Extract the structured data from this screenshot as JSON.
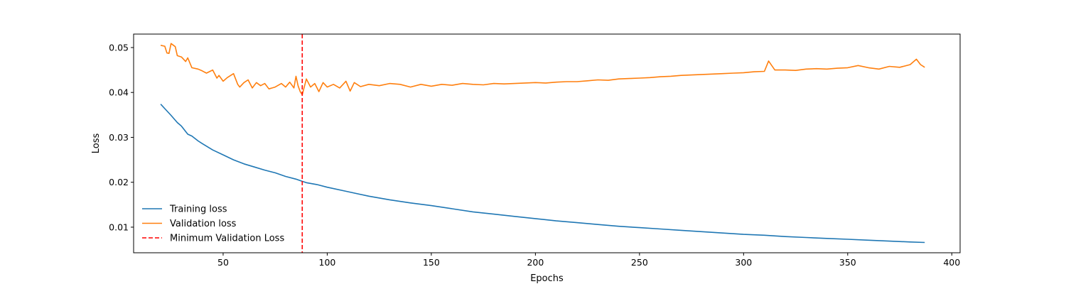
{
  "chart_data": {
    "type": "line",
    "title": "",
    "xlabel": "Epochs",
    "ylabel": "Loss",
    "xlim": [
      7,
      404
    ],
    "ylim": [
      0.0043,
      0.053
    ],
    "xticks": [
      50,
      100,
      150,
      200,
      250,
      300,
      350,
      400
    ],
    "yticks": [
      0.01,
      0.02,
      0.03,
      0.04,
      0.05
    ],
    "xtick_labels": [
      "50",
      "100",
      "150",
      "200",
      "250",
      "300",
      "350",
      "400"
    ],
    "ytick_labels": [
      "0.01",
      "0.02",
      "0.03",
      "0.04",
      "0.05"
    ],
    "grid": false,
    "legend_position": "lower-left",
    "series": [
      {
        "name": "Training loss",
        "color": "#1f77b4",
        "style": "solid",
        "x": [
          20,
          22,
          25,
          28,
          30,
          33,
          35,
          38,
          40,
          45,
          50,
          55,
          60,
          65,
          70,
          75,
          80,
          85,
          88,
          90,
          95,
          100,
          110,
          120,
          130,
          140,
          150,
          160,
          170,
          180,
          190,
          200,
          210,
          220,
          230,
          240,
          250,
          260,
          270,
          280,
          290,
          300,
          310,
          320,
          330,
          340,
          350,
          360,
          370,
          380,
          387
        ],
        "y": [
          0.0374,
          0.0364,
          0.0349,
          0.0333,
          0.0325,
          0.0307,
          0.0303,
          0.0292,
          0.0286,
          0.0272,
          0.0261,
          0.025,
          0.0241,
          0.0234,
          0.0227,
          0.0221,
          0.0213,
          0.0207,
          0.0202,
          0.0199,
          0.0195,
          0.0189,
          0.0179,
          0.0169,
          0.0161,
          0.0154,
          0.0148,
          0.0141,
          0.0134,
          0.0129,
          0.0124,
          0.0119,
          0.0114,
          0.011,
          0.0106,
          0.0102,
          0.0099,
          0.0096,
          0.0093,
          0.009,
          0.0087,
          0.0084,
          0.0082,
          0.0079,
          0.0077,
          0.0075,
          0.0073,
          0.0071,
          0.0069,
          0.0067,
          0.0066
        ]
      },
      {
        "name": "Validation loss",
        "color": "#ff7f0e",
        "style": "solid",
        "x": [
          20,
          22,
          23,
          24,
          25,
          27,
          28,
          30,
          32,
          33,
          35,
          38,
          40,
          42,
          45,
          47,
          48,
          50,
          52,
          55,
          57,
          58,
          60,
          62,
          64,
          66,
          68,
          70,
          72,
          75,
          78,
          80,
          82,
          84,
          85,
          86,
          87,
          88,
          90,
          92,
          94,
          96,
          98,
          100,
          103,
          106,
          109,
          111,
          113,
          116,
          120,
          125,
          130,
          135,
          140,
          145,
          150,
          155,
          160,
          165,
          170,
          175,
          180,
          185,
          190,
          195,
          200,
          205,
          210,
          215,
          220,
          225,
          230,
          235,
          240,
          245,
          250,
          255,
          260,
          265,
          270,
          275,
          280,
          285,
          290,
          295,
          300,
          305,
          310,
          312,
          315,
          320,
          325,
          330,
          335,
          340,
          345,
          350,
          355,
          360,
          365,
          370,
          375,
          380,
          383,
          385,
          387
        ],
        "y": [
          0.0505,
          0.0503,
          0.0488,
          0.0487,
          0.0509,
          0.0502,
          0.0482,
          0.0479,
          0.0469,
          0.0477,
          0.0455,
          0.0452,
          0.0448,
          0.0443,
          0.045,
          0.0432,
          0.0438,
          0.0425,
          0.0433,
          0.0442,
          0.0418,
          0.0412,
          0.0422,
          0.0428,
          0.041,
          0.0422,
          0.0415,
          0.042,
          0.0408,
          0.0412,
          0.042,
          0.0412,
          0.0423,
          0.041,
          0.0436,
          0.0415,
          0.0402,
          0.0395,
          0.043,
          0.0412,
          0.042,
          0.0402,
          0.0422,
          0.0412,
          0.0418,
          0.041,
          0.0425,
          0.0403,
          0.0422,
          0.0413,
          0.0418,
          0.0415,
          0.042,
          0.0418,
          0.0412,
          0.0418,
          0.0414,
          0.0418,
          0.0416,
          0.042,
          0.0418,
          0.0417,
          0.042,
          0.0419,
          0.042,
          0.0421,
          0.0422,
          0.0421,
          0.0423,
          0.0424,
          0.0424,
          0.0426,
          0.0428,
          0.0427,
          0.043,
          0.0431,
          0.0432,
          0.0433,
          0.0435,
          0.0436,
          0.0438,
          0.0439,
          0.044,
          0.0441,
          0.0442,
          0.0443,
          0.0444,
          0.0446,
          0.0447,
          0.047,
          0.045,
          0.045,
          0.0449,
          0.0452,
          0.0453,
          0.0452,
          0.0454,
          0.0455,
          0.046,
          0.0455,
          0.0452,
          0.0458,
          0.0456,
          0.0462,
          0.0474,
          0.0462,
          0.0456
        ]
      }
    ],
    "annotations": [
      {
        "type": "vline",
        "label": "Minimum Validation Loss",
        "x": 88,
        "color": "#ff0000",
        "style": "dashed"
      }
    ]
  }
}
